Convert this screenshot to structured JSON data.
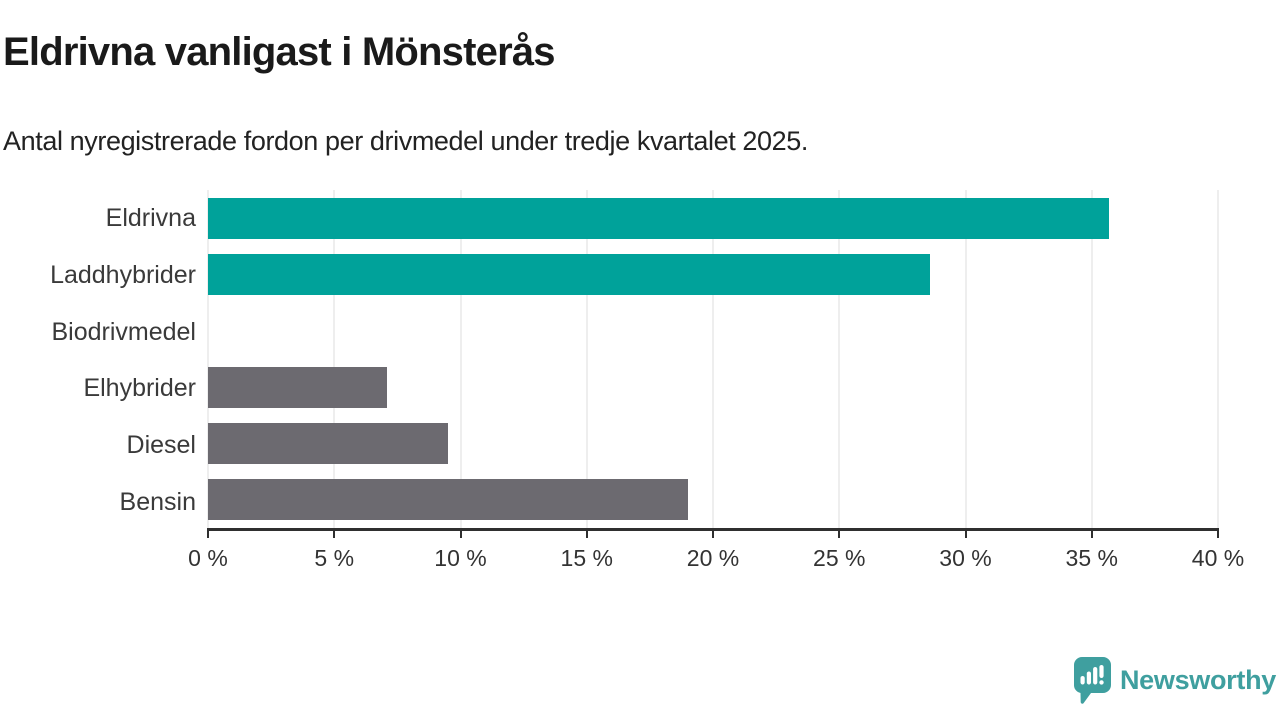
{
  "title": "Eldrivna vanligast i Mönsterås",
  "subtitle": "Antal nyregistrerade fordon per drivmedel under tredje kvartalet 2025.",
  "colors": {
    "bar_teal": "#00a29a",
    "bar_gray": "#6c6a70",
    "grid": "#dedede",
    "axis": "#2f2f2f",
    "logo_teal": "#3f9f9f"
  },
  "chart_data": {
    "type": "bar",
    "orientation": "horizontal",
    "title": "Eldrivna vanligast i Mönsterås",
    "subtitle": "Antal nyregistrerade fordon per drivmedel under tredje kvartalet 2025.",
    "categories": [
      "Eldrivna",
      "Laddhybrider",
      "Biodrivmedel",
      "Elhybrider",
      "Diesel",
      "Bensin"
    ],
    "values": [
      35.7,
      28.6,
      0,
      7.1,
      9.5,
      19.0
    ],
    "unit": "%",
    "bar_colors": [
      "#00a29a",
      "#00a29a",
      "#00a29a",
      "#6c6a70",
      "#6c6a70",
      "#6c6a70"
    ],
    "xlim": [
      0,
      40
    ],
    "x_ticks": [
      0,
      5,
      10,
      15,
      20,
      25,
      30,
      35,
      40
    ],
    "x_tick_labels": [
      "0 %",
      "5 %",
      "10 %",
      "15 %",
      "20 %",
      "25 %",
      "30 %",
      "35 %",
      "40 %"
    ],
    "grid": true,
    "legend": false
  },
  "footer": {
    "brand": "Newsworthy"
  }
}
